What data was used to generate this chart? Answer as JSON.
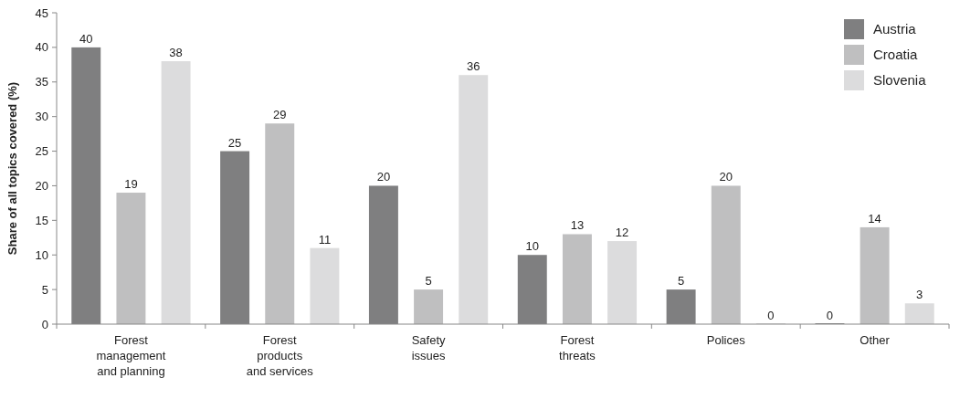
{
  "chart_data": {
    "type": "bar",
    "ylabel": "Share of all topics covered (%)",
    "categories": [
      "Forest\nmanagement\nand planning",
      "Forest\nproducts\nand services",
      "Safety\nissues",
      "Forest\nthreats",
      "Polices",
      "Other"
    ],
    "series": [
      {
        "name": "Austria",
        "color": "#7f7f80",
        "values": [
          40,
          25,
          20,
          10,
          5,
          0
        ]
      },
      {
        "name": "Croatia",
        "color": "#bfbfc0",
        "values": [
          19,
          29,
          5,
          13,
          20,
          14
        ]
      },
      {
        "name": "Slovenia",
        "color": "#dcdcdd",
        "values": [
          38,
          11,
          36,
          12,
          0,
          3
        ]
      }
    ],
    "ylim": [
      0,
      45
    ],
    "yticks": [
      0,
      5,
      10,
      15,
      20,
      25,
      30,
      35,
      40,
      45
    ],
    "data_labels": true,
    "legend": "top right",
    "grid": false
  }
}
